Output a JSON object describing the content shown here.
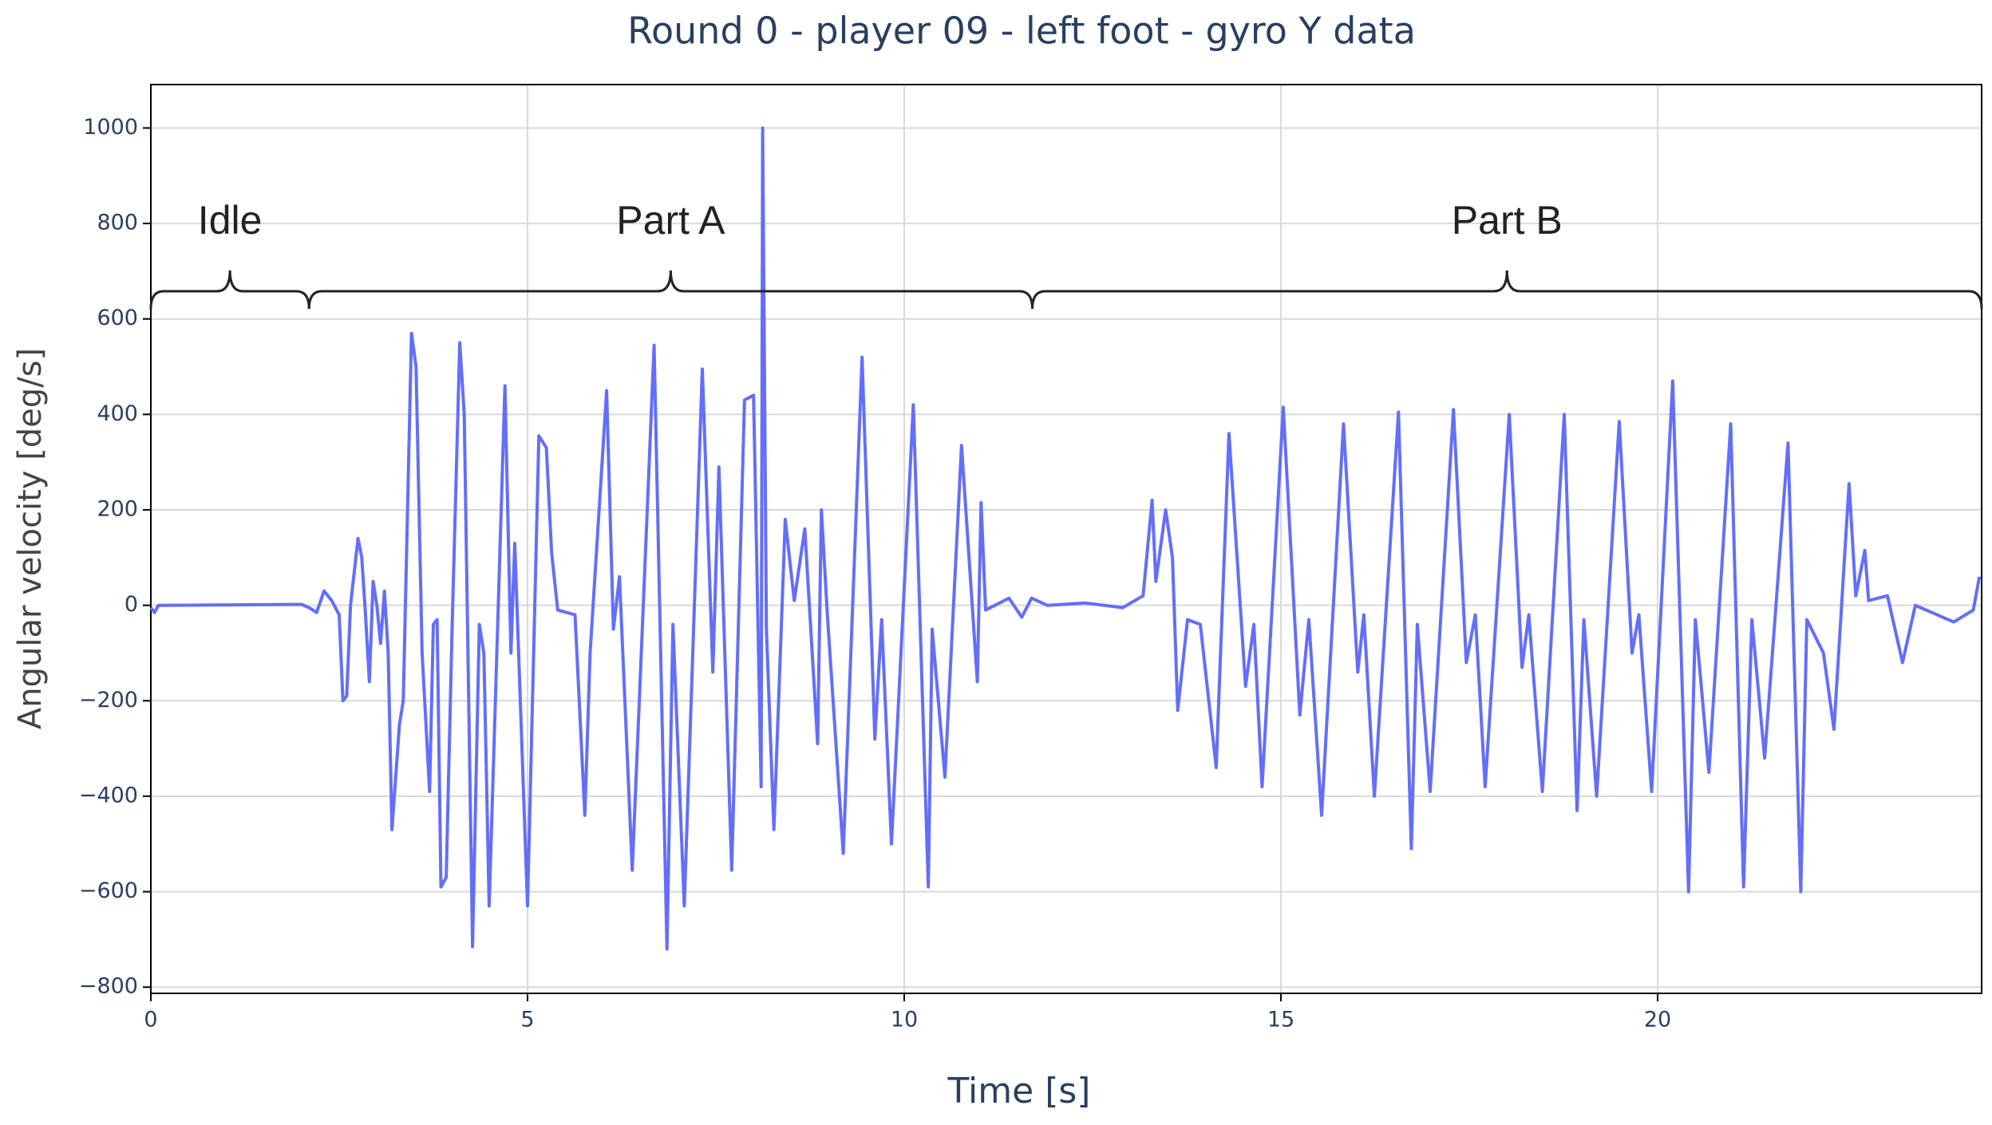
{
  "chart_data": {
    "type": "line",
    "title": "Round 0 - player 09 - left foot - gyro Y data",
    "x_label": "Time [s]",
    "y_label": "Angular velocity [deg/s]",
    "xlim": [
      0,
      24.3
    ],
    "ylim": [
      -813,
      1091
    ],
    "xticks": [
      0,
      5,
      10,
      15,
      20
    ],
    "yticks": [
      {
        "value": -800,
        "label": "−800"
      },
      {
        "value": -600,
        "label": "−600"
      },
      {
        "value": -400,
        "label": "−400"
      },
      {
        "value": -200,
        "label": "−200"
      },
      0,
      200,
      400,
      600,
      800,
      1000
    ],
    "grid": true,
    "annotations": [
      {
        "text": "Idle",
        "start": 0,
        "end": 2.1
      },
      {
        "text": "Part A",
        "start": 2.1,
        "end": 11.7
      },
      {
        "text": "Part B",
        "start": 11.7,
        "end": 24.3
      }
    ],
    "x": [
      0,
      0.05,
      0.1,
      2.0,
      2.1,
      2.2,
      2.3,
      2.4,
      2.5,
      2.55,
      2.6,
      2.65,
      2.75,
      2.8,
      2.85,
      2.9,
      2.95,
      3.0,
      3.05,
      3.1,
      3.15,
      3.2,
      3.3,
      3.35,
      3.46,
      3.52,
      3.6,
      3.7,
      3.75,
      3.8,
      3.85,
      3.92,
      4.0,
      4.1,
      4.16,
      4.27,
      4.36,
      4.42,
      4.49,
      4.7,
      4.78,
      4.83,
      5.0,
      5.15,
      5.25,
      5.32,
      5.4,
      5.63,
      5.76,
      5.83,
      6.05,
      6.14,
      6.22,
      6.39,
      6.68,
      6.85,
      6.93,
      7.08,
      7.32,
      7.46,
      7.54,
      7.71,
      7.88,
      8.0,
      8.1,
      8.12,
      8.17,
      8.27,
      8.42,
      8.54,
      8.68,
      8.85,
      8.9,
      8.98,
      9.19,
      9.44,
      9.61,
      9.7,
      9.83,
      10.12,
      10.32,
      10.37,
      10.54,
      10.76,
      10.97,
      11.02,
      11.08,
      11.39,
      11.56,
      11.69,
      11.9,
      12.4,
      12.9,
      13.17,
      13.29,
      13.34,
      13.47,
      13.56,
      13.63,
      13.76,
      13.93,
      14.14,
      14.31,
      14.53,
      14.64,
      14.75,
      15.03,
      15.25,
      15.37,
      15.54,
      15.83,
      16.02,
      16.1,
      16.24,
      16.56,
      16.73,
      16.81,
      16.98,
      17.29,
      17.46,
      17.58,
      17.71,
      18.03,
      18.2,
      18.29,
      18.47,
      18.76,
      18.93,
      19.02,
      19.19,
      19.49,
      19.66,
      19.75,
      19.92,
      20.2,
      20.41,
      20.5,
      20.68,
      20.97,
      21.14,
      21.25,
      21.42,
      21.73,
      21.9,
      21.98,
      22.2,
      22.34,
      22.54,
      22.63,
      22.75,
      22.8,
      23.05,
      23.25,
      23.42,
      23.93,
      24.19,
      24.27
    ],
    "series": [
      {
        "name": "gyro Y",
        "color": "#636efa",
        "values": [
          -5,
          -15,
          0,
          2,
          -5,
          -15,
          30,
          10,
          -20,
          -200,
          -190,
          0,
          140,
          100,
          -20,
          -160,
          50,
          0,
          -80,
          30,
          -100,
          -470,
          -250,
          -200,
          570,
          500,
          -100,
          -390,
          -40,
          -30,
          -590,
          -570,
          -40,
          550,
          400,
          -715,
          -40,
          -100,
          -630,
          460,
          -100,
          130,
          -630,
          355,
          330,
          110,
          -10,
          -20,
          -440,
          -100,
          450,
          -50,
          60,
          -555,
          545,
          -720,
          -40,
          -630,
          495,
          -140,
          290,
          -555,
          430,
          440,
          -380,
          1000,
          -50,
          -470,
          180,
          10,
          160,
          -290,
          200,
          -20,
          -520,
          520,
          -280,
          -30,
          -500,
          420,
          -590,
          -50,
          -360,
          335,
          -160,
          215,
          -10,
          15,
          -25,
          15,
          0,
          5,
          -5,
          20,
          220,
          50,
          200,
          100,
          -220,
          -30,
          -40,
          -340,
          360,
          -170,
          -40,
          -380,
          415,
          -230,
          -30,
          -440,
          380,
          -140,
          -20,
          -400,
          405,
          -510,
          -40,
          -390,
          410,
          -120,
          -20,
          -380,
          400,
          -130,
          -20,
          -390,
          400,
          -430,
          -30,
          -400,
          385,
          -100,
          -20,
          -390,
          470,
          -600,
          -30,
          -350,
          380,
          -590,
          -30,
          -320,
          340,
          -600,
          -30,
          -100,
          -260,
          255,
          20,
          115,
          10,
          20,
          -120,
          0,
          -35,
          -10,
          60
        ]
      }
    ]
  }
}
